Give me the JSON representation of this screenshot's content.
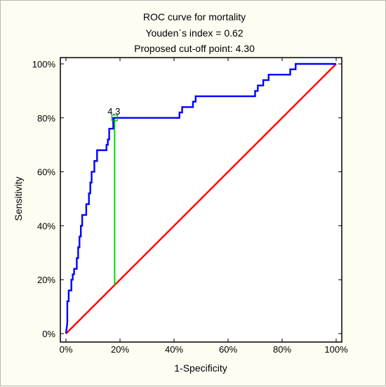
{
  "chart_data": {
    "type": "line",
    "title": "ROC curve for mortality",
    "subtitle_lines": [
      "Youden`s index = 0.62",
      "Proposed cut-off point: 4.30"
    ],
    "xlabel": "1-Specificity",
    "ylabel": "Sensitivity",
    "xlim": [
      0,
      1
    ],
    "ylim": [
      0,
      1
    ],
    "xticks": [
      0,
      0.2,
      0.4,
      0.6,
      0.8,
      1.0
    ],
    "xtick_labels": [
      "0%",
      "20%",
      "40%",
      "60%",
      "80%",
      "100%"
    ],
    "yticks": [
      0,
      0.2,
      0.4,
      0.6,
      0.8,
      1.0
    ],
    "ytick_labels": [
      "0%",
      "20%",
      "40%",
      "60%",
      "80%",
      "100%"
    ],
    "grid": false,
    "series": [
      {
        "type": "step-line",
        "color": "#0000ff",
        "points": [
          [
            0,
            0
          ],
          [
            0.005,
            0.04
          ],
          [
            0.005,
            0.12
          ],
          [
            0.01,
            0.12
          ],
          [
            0.01,
            0.16
          ],
          [
            0.02,
            0.16
          ],
          [
            0.02,
            0.2
          ],
          [
            0.025,
            0.2
          ],
          [
            0.025,
            0.22
          ],
          [
            0.03,
            0.22
          ],
          [
            0.03,
            0.24
          ],
          [
            0.04,
            0.24
          ],
          [
            0.04,
            0.28
          ],
          [
            0.045,
            0.28
          ],
          [
            0.045,
            0.32
          ],
          [
            0.05,
            0.32
          ],
          [
            0.05,
            0.36
          ],
          [
            0.055,
            0.36
          ],
          [
            0.055,
            0.4
          ],
          [
            0.06,
            0.4
          ],
          [
            0.06,
            0.44
          ],
          [
            0.075,
            0.44
          ],
          [
            0.075,
            0.48
          ],
          [
            0.085,
            0.48
          ],
          [
            0.085,
            0.52
          ],
          [
            0.09,
            0.52
          ],
          [
            0.09,
            0.56
          ],
          [
            0.095,
            0.56
          ],
          [
            0.095,
            0.6
          ],
          [
            0.105,
            0.6
          ],
          [
            0.105,
            0.64
          ],
          [
            0.115,
            0.64
          ],
          [
            0.115,
            0.68
          ],
          [
            0.15,
            0.68
          ],
          [
            0.15,
            0.7
          ],
          [
            0.155,
            0.7
          ],
          [
            0.155,
            0.72
          ],
          [
            0.16,
            0.72
          ],
          [
            0.16,
            0.76
          ],
          [
            0.175,
            0.76
          ],
          [
            0.175,
            0.8
          ],
          [
            0.42,
            0.8
          ],
          [
            0.42,
            0.82
          ],
          [
            0.43,
            0.82
          ],
          [
            0.43,
            0.84
          ],
          [
            0.47,
            0.84
          ],
          [
            0.47,
            0.86
          ],
          [
            0.48,
            0.86
          ],
          [
            0.48,
            0.88
          ],
          [
            0.5,
            0.88
          ],
          [
            0.7,
            0.88
          ],
          [
            0.7,
            0.9
          ],
          [
            0.71,
            0.9
          ],
          [
            0.71,
            0.92
          ],
          [
            0.73,
            0.92
          ],
          [
            0.73,
            0.94
          ],
          [
            0.75,
            0.94
          ],
          [
            0.75,
            0.96
          ],
          [
            0.83,
            0.96
          ],
          [
            0.83,
            0.98
          ],
          [
            0.85,
            0.98
          ],
          [
            0.85,
            1.0
          ],
          [
            1.0,
            1.0
          ]
        ]
      },
      {
        "type": "line",
        "color": "#ff0000",
        "points": [
          [
            0,
            0
          ],
          [
            1,
            1
          ]
        ]
      },
      {
        "type": "line",
        "color": "#00dd00",
        "points": [
          [
            0.18,
            0.18
          ],
          [
            0.18,
            0.8
          ]
        ]
      }
    ],
    "annotations": [
      {
        "text": "4.3",
        "x": 0.18,
        "y": 0.8
      }
    ]
  }
}
